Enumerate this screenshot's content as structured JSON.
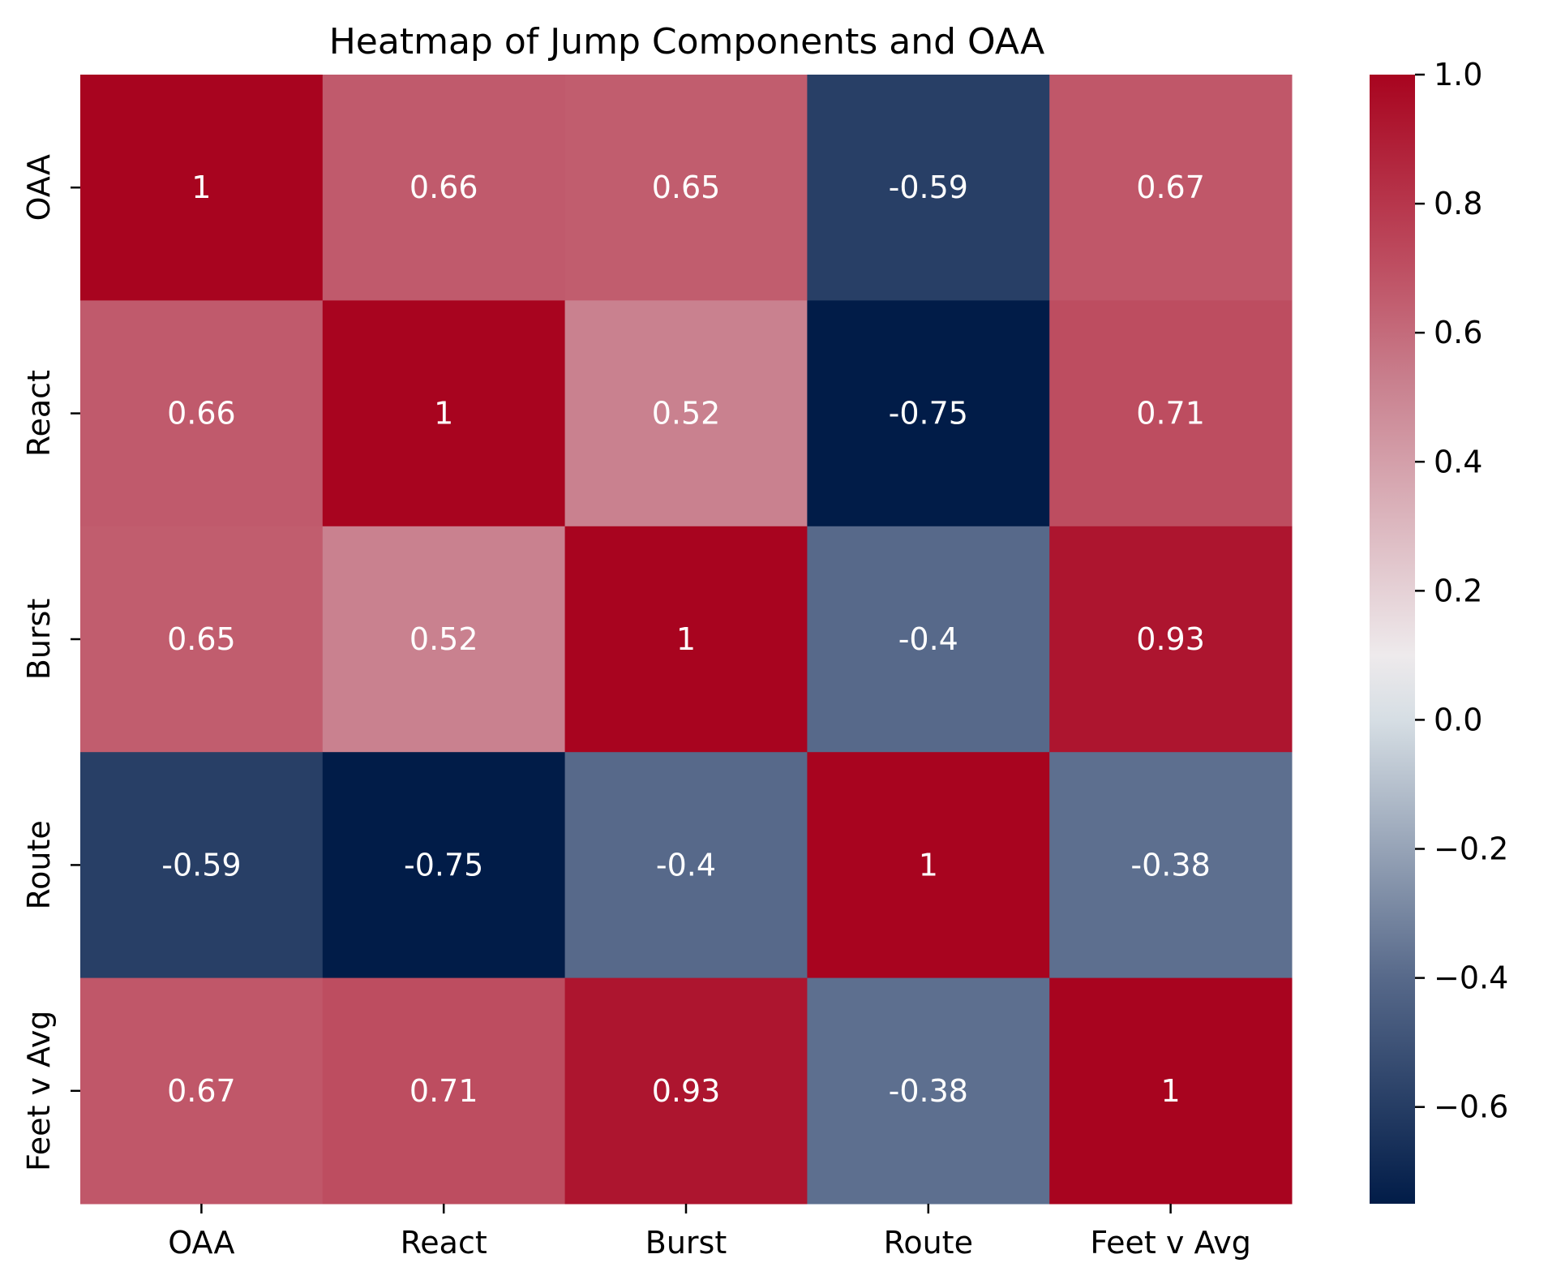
{
  "chart_data": {
    "type": "heatmap",
    "title": "Heatmap of Jump Components and OAA",
    "x_categories": [
      "OAA",
      "React",
      "Burst",
      "Route",
      "Feet v Avg"
    ],
    "y_categories": [
      "OAA",
      "React",
      "Burst",
      "Route",
      "Feet v Avg"
    ],
    "values": [
      [
        1.0,
        0.66,
        0.65,
        -0.59,
        0.67
      ],
      [
        0.66,
        1.0,
        0.52,
        -0.75,
        0.71
      ],
      [
        0.65,
        0.52,
        1.0,
        -0.4,
        0.93
      ],
      [
        -0.59,
        -0.75,
        -0.4,
        1.0,
        -0.38
      ],
      [
        0.67,
        0.71,
        0.93,
        -0.38,
        1.0
      ]
    ],
    "annotations": [
      [
        "1",
        "0.66",
        "0.65",
        "-0.59",
        "0.67"
      ],
      [
        "0.66",
        "1",
        "0.52",
        "-0.75",
        "0.71"
      ],
      [
        "0.65",
        "0.52",
        "1",
        "-0.4",
        "0.93"
      ],
      [
        "-0.59",
        "-0.75",
        "-0.4",
        "1",
        "-0.38"
      ],
      [
        "0.67",
        "0.71",
        "0.93",
        "-0.38",
        "1"
      ]
    ],
    "colorbar": {
      "vmin": -0.75,
      "vmax": 1.0,
      "ticks": [
        1.0,
        0.8,
        0.6,
        0.4,
        0.2,
        0.0,
        -0.2,
        -0.4,
        -0.6
      ],
      "tick_labels": [
        "1.0",
        "0.8",
        "0.6",
        "0.4",
        "0.2",
        "0.0",
        "−0.2",
        "−0.4",
        "−0.6"
      ],
      "colormap_stops": [
        {
          "v": -0.75,
          "color": "#011c48"
        },
        {
          "v": -0.4,
          "color": "#57698a"
        },
        {
          "v": 0.0,
          "color": "#d6dee4"
        },
        {
          "v": 0.1,
          "color": "#eeeaec"
        },
        {
          "v": 0.52,
          "color": "#c9818f"
        },
        {
          "v": 0.7,
          "color": "#be4f62"
        },
        {
          "v": 1.0,
          "color": "#a8041f"
        }
      ]
    },
    "annotation_color": "#ffffff",
    "grid": false
  }
}
